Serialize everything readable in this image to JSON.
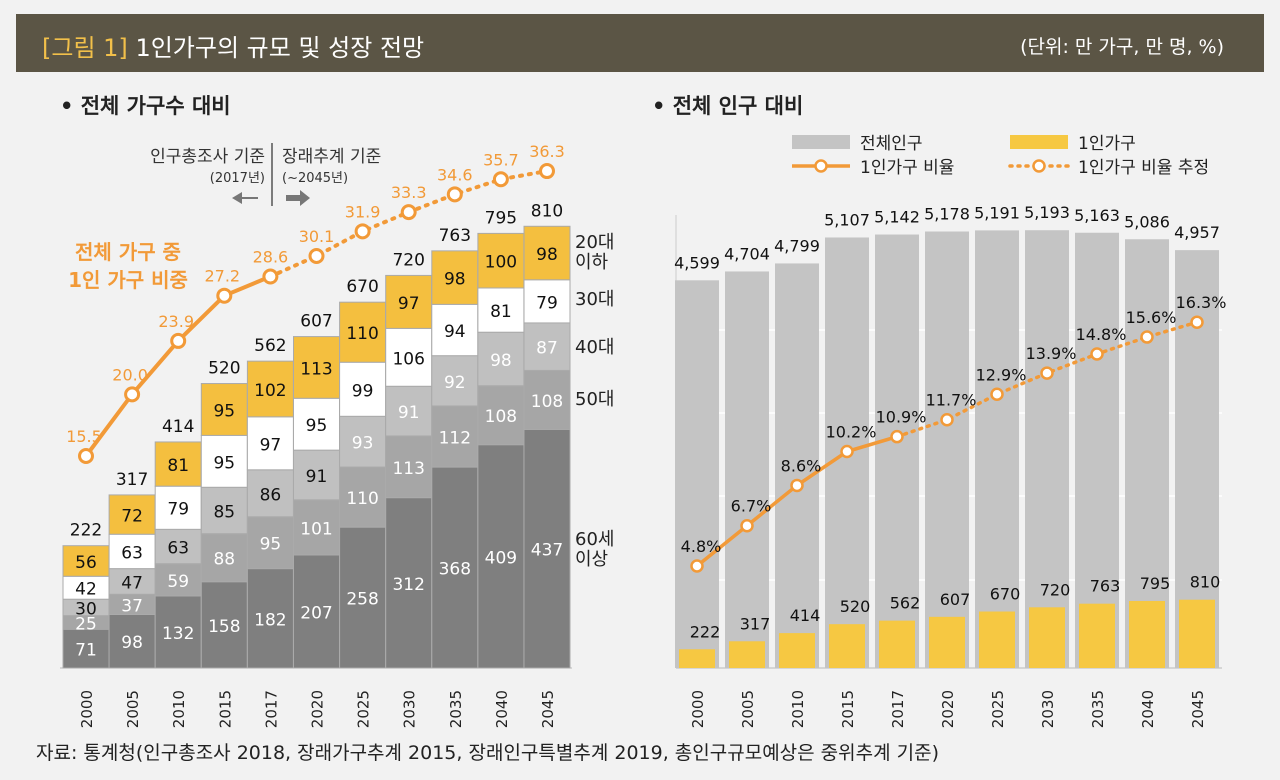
{
  "header": {
    "figure_label": "[그림 1]",
    "title": "1인가구의 규모 및 성장 전망",
    "unit": "(단위: 만 가구, 만 명, %)"
  },
  "source": "자료: 통계청(인구총조사 2018, 장래가구추계 2015, 장래인구특별추계 2019, 총인구규모예상은 중위추계 기준)",
  "colors": {
    "age60": "#7f7f7f",
    "age50": "#a6a6a6",
    "age40": "#c0c0c0",
    "age30": "#ffffff",
    "age20": "#f4bf3f",
    "line": "#f29a38",
    "total_pop": "#c4c4c4",
    "single": "#f6c842"
  },
  "chart_data": [
    {
      "type": "bar",
      "stacked": true,
      "subtitle": "• 전체 가구수 대비",
      "categories": [
        "2000",
        "2005",
        "2010",
        "2015",
        "2017",
        "2020",
        "2025",
        "2030",
        "2035",
        "2040",
        "2045"
      ],
      "series": [
        {
          "name": "60세 이상",
          "values": [
            71,
            98,
            132,
            158,
            182,
            207,
            258,
            312,
            368,
            409,
            437
          ]
        },
        {
          "name": "50대",
          "values": [
            25,
            37,
            59,
            88,
            95,
            101,
            110,
            113,
            112,
            108,
            108
          ]
        },
        {
          "name": "40대",
          "values": [
            30,
            47,
            63,
            85,
            86,
            91,
            93,
            91,
            92,
            98,
            87
          ]
        },
        {
          "name": "30대",
          "values": [
            42,
            63,
            79,
            95,
            97,
            95,
            99,
            106,
            94,
            81,
            79
          ]
        },
        {
          "name": "20대 이하",
          "values": [
            56,
            72,
            81,
            95,
            102,
            113,
            110,
            97,
            98,
            100,
            98
          ]
        }
      ],
      "totals": [
        222,
        317,
        414,
        520,
        562,
        607,
        670,
        720,
        763,
        795,
        810
      ],
      "ratio": {
        "name": "전체 가구 중 1인 가구 비중",
        "values": [
          15.5,
          20.0,
          23.9,
          27.2,
          28.6,
          30.1,
          31.9,
          33.3,
          34.6,
          35.7,
          36.3
        ],
        "estimated_from": "2017"
      },
      "annotation_left": {
        "text": "인구총조사 기준",
        "sub": "(2017년)"
      },
      "annotation_right": {
        "text": "장래추계 기준",
        "sub": "(~2045년)"
      },
      "series_labels": [
        "60세",
        "이상",
        "50대",
        "40대",
        "30대",
        "20대",
        "이하"
      ]
    },
    {
      "type": "bar",
      "subtitle": "• 전체 인구 대비",
      "categories": [
        "2000",
        "2005",
        "2010",
        "2015",
        "2017",
        "2020",
        "2025",
        "2030",
        "2035",
        "2040",
        "2045"
      ],
      "series": [
        {
          "name": "전체인구",
          "values": [
            4599,
            4704,
            4799,
            5107,
            5142,
            5178,
            5191,
            5193,
            5163,
            5086,
            4957
          ]
        },
        {
          "name": "1인가구",
          "values": [
            222,
            317,
            414,
            520,
            562,
            607,
            670,
            720,
            763,
            795,
            810
          ]
        }
      ],
      "ratio": {
        "name": "1인가구 비율",
        "estimated_name": "1인가구 비율 추정",
        "values": [
          4.8,
          6.7,
          8.6,
          10.2,
          10.9,
          11.7,
          12.9,
          13.9,
          14.8,
          15.6,
          16.3
        ],
        "unit": "%"
      },
      "legend": "top"
    }
  ]
}
